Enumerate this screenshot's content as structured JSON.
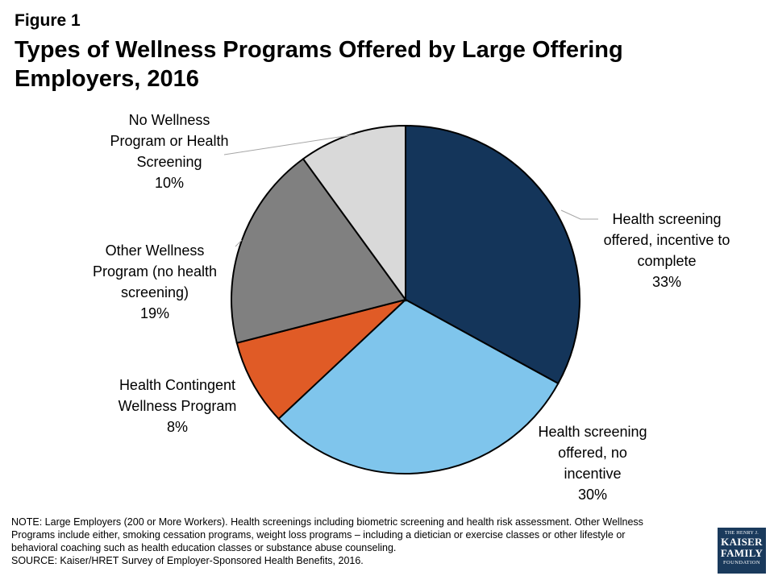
{
  "figure_label": "Figure 1",
  "title": "Types of Wellness Programs Offered by Large Offering Employers, 2016",
  "chart_data": {
    "type": "pie",
    "slices": [
      {
        "lines": [
          "Health screening",
          "offered, incentive to",
          "complete"
        ],
        "pct_label": "33%",
        "value": 33,
        "color": "#14355a"
      },
      {
        "lines": [
          "Health screening",
          "offered, no",
          "incentive"
        ],
        "pct_label": "30%",
        "value": 30,
        "color": "#7fc5ec"
      },
      {
        "lines": [
          "Health Contingent",
          "Wellness Program"
        ],
        "pct_label": "8%",
        "value": 8,
        "color": "#e05b26"
      },
      {
        "lines": [
          "Other Wellness",
          "Program (no health",
          "screening)"
        ],
        "pct_label": "19%",
        "value": 19,
        "color": "#808080"
      },
      {
        "lines": [
          "No Wellness",
          "Program or Health",
          "Screening"
        ],
        "pct_label": "10%",
        "value": 10,
        "color": "#d9d9d9"
      }
    ]
  },
  "note": {
    "lines": [
      "NOTE:  Large Employers (200 or More Workers).  Health screenings including biometric screening and health risk assessment.  Other Wellness",
      "Programs include either,  smoking cessation programs, weight loss programs – including a dietician or exercise classes  or other lifestyle or",
      "behavioral coaching such as health education classes or substance abuse counseling."
    ],
    "source": "SOURCE: Kaiser/HRET Survey of Employer-Sponsored Health Benefits, 2016."
  },
  "logo": {
    "small": "THE HENRY J.",
    "line1": "KAISER",
    "line2": "FAMILY",
    "line3": "FOUNDATION"
  }
}
